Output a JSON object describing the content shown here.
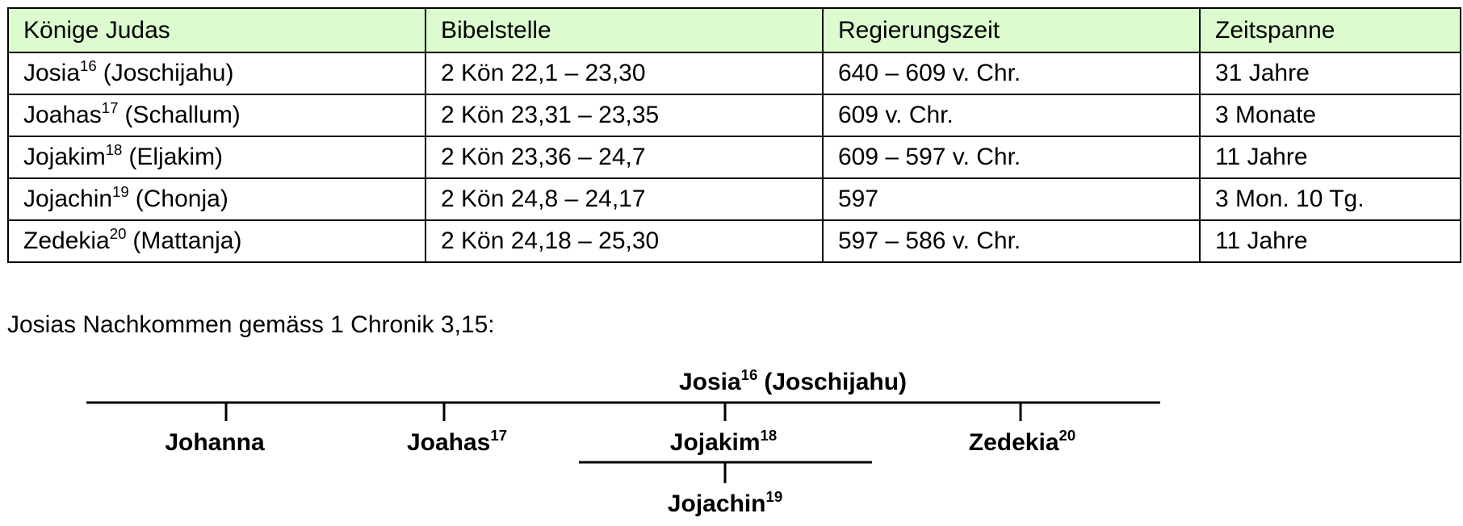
{
  "table": {
    "header": [
      "Könige Judas",
      "Bibelstelle",
      "Regierungszeit",
      "Zeitspanne"
    ],
    "rows": [
      {
        "king": {
          "name": "Josia",
          "sup": "16",
          "alias": "(Joschijahu)"
        },
        "passage": "2 Kön 22,1 – 23,30",
        "reign": "640 – 609 v. Chr.",
        "span": "31 Jahre"
      },
      {
        "king": {
          "name": "Joahas",
          "sup": "17",
          "alias": "(Schallum)"
        },
        "passage": "2 Kön 23,31 – 23,35",
        "reign": "609 v. Chr.",
        "span": "3 Monate"
      },
      {
        "king": {
          "name": "Jojakim",
          "sup": "18",
          "alias": "(Eljakim)"
        },
        "passage": "2 Kön 23,36 – 24,7",
        "reign": "609 – 597 v. Chr.",
        "span": "11 Jahre"
      },
      {
        "king": {
          "name": "Jojachin",
          "sup": "19",
          "alias": "(Chonja)"
        },
        "passage": "2 Kön 24,8 – 24,17",
        "reign": "597",
        "span": "3 Mon. 10 Tg."
      },
      {
        "king": {
          "name": "Zedekia",
          "sup": "20",
          "alias": "(Mattanja)"
        },
        "passage": "2 Kön 24,18 – 25,30",
        "reign": "597 – 586 v. Chr.",
        "span": "11 Jahre"
      }
    ]
  },
  "caption": "Josias Nachkommen gemäss 1 Chronik 3,15:",
  "tree": {
    "root": {
      "name": "Josia",
      "sup": "16",
      "alias": "(Joschijahu)"
    },
    "children": [
      {
        "name": "Johanna"
      },
      {
        "name": "Joahas",
        "sup": "17"
      },
      {
        "name": "Jojakim",
        "sup": "18"
      },
      {
        "name": "Zedekia",
        "sup": "20"
      }
    ],
    "grandchild": {
      "name": "Jojachin",
      "sup": "19"
    }
  }
}
